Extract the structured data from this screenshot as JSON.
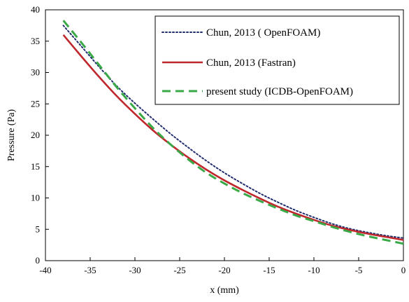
{
  "chart_data": {
    "type": "line",
    "title": "",
    "xlabel": "x (mm)",
    "ylabel": "Pressure (Pa)",
    "xlim": [
      -40,
      0
    ],
    "ylim": [
      0,
      40
    ],
    "xticks": [
      -40,
      -35,
      -30,
      -25,
      -20,
      -15,
      -10,
      -5,
      0
    ],
    "yticks": [
      0,
      5,
      10,
      15,
      20,
      25,
      30,
      35,
      40
    ],
    "grid": false,
    "legend_position": "top-right",
    "series": [
      {
        "name": "Chun, 2013 ( OpenFOAM)",
        "color": "#1f2d6e",
        "dash": "dotted",
        "x": [
          -38,
          -36,
          -34,
          -32,
          -30,
          -28,
          -26,
          -24,
          -22,
          -20,
          -18,
          -16,
          -14,
          -12,
          -10,
          -8,
          -6,
          -4,
          -2,
          0
        ],
        "y": [
          37.5,
          34.2,
          30.9,
          27.8,
          25.1,
          22.6,
          20.2,
          18.0,
          15.9,
          14.0,
          12.3,
          10.7,
          9.3,
          8.0,
          6.9,
          5.9,
          5.1,
          4.5,
          4.0,
          3.6
        ]
      },
      {
        "name": "Chun, 2013 (Fastran)",
        "color": "#c0272d",
        "dash": "solid",
        "x": [
          -38,
          -36,
          -34,
          -32,
          -30,
          -28,
          -26,
          -24,
          -22,
          -20,
          -18,
          -16,
          -14,
          -12,
          -10,
          -8,
          -6,
          -4,
          -2,
          0
        ],
        "y": [
          36.0,
          32.6,
          29.3,
          26.2,
          23.4,
          20.8,
          18.5,
          16.4,
          14.5,
          12.8,
          11.3,
          9.9,
          8.6,
          7.5,
          6.5,
          5.6,
          4.9,
          4.3,
          3.8,
          3.3
        ]
      },
      {
        "name": "present study (ICDB-OpenFOAM)",
        "color": "#3aaa48",
        "dash": "dashed",
        "x": [
          -38,
          -36,
          -34,
          -32,
          -30,
          -28,
          -26,
          -24,
          -22,
          -20,
          -18,
          -16,
          -14,
          -12,
          -10,
          -8,
          -6,
          -4,
          -2,
          0
        ],
        "y": [
          38.3,
          34.8,
          31.2,
          27.6,
          24.3,
          21.2,
          18.5,
          16.1,
          14.0,
          12.3,
          10.8,
          9.5,
          8.3,
          7.2,
          6.3,
          5.4,
          4.6,
          3.9,
          3.3,
          2.7
        ]
      }
    ]
  }
}
